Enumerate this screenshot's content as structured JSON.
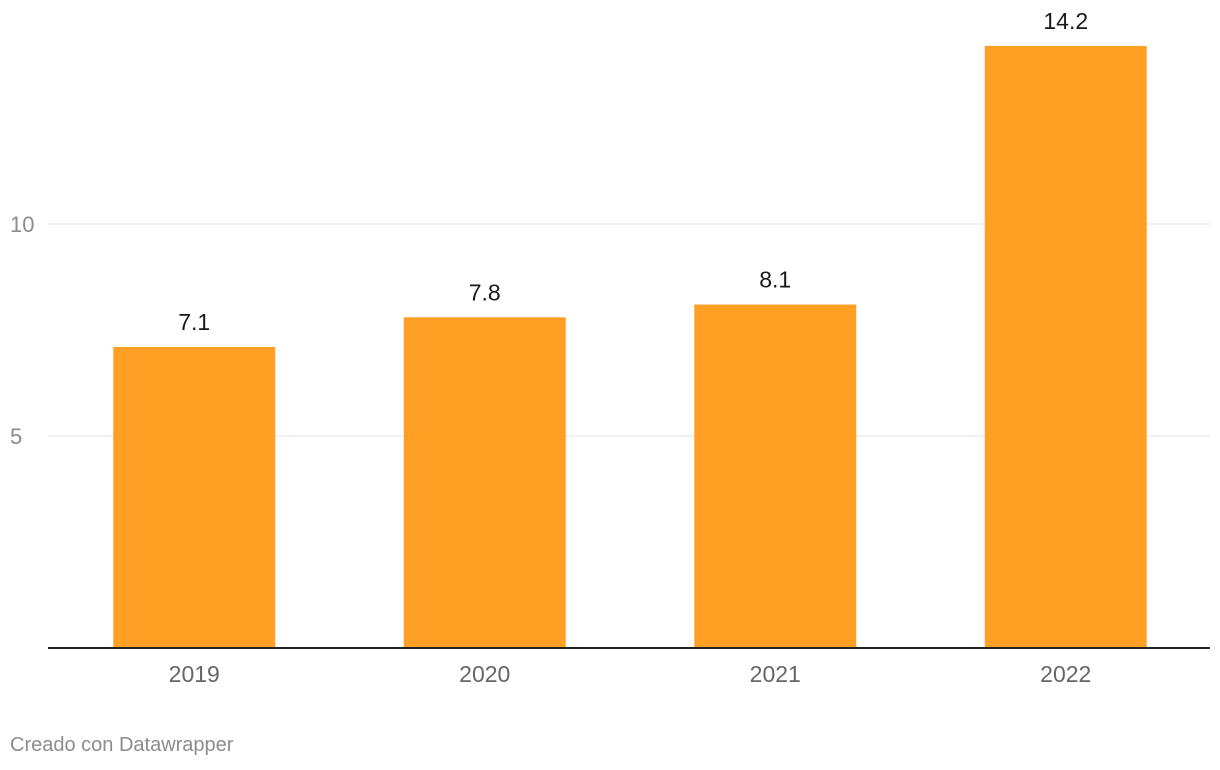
{
  "chart_data": {
    "type": "bar",
    "title": "",
    "xlabel": "",
    "ylabel": "",
    "categories": [
      "2019",
      "2020",
      "2021",
      "2022"
    ],
    "values": [
      7.1,
      7.8,
      8.1,
      14.2
    ],
    "value_labels": [
      "7.1",
      "7.8",
      "8.1",
      "14.2"
    ],
    "ylim": [
      0,
      15.2
    ],
    "yticks": [
      5,
      10
    ],
    "ytick_labels": [
      "5",
      "10"
    ],
    "grid": true,
    "bar_color": "#ff9f24"
  },
  "credit": "Creado con Datawrapper"
}
